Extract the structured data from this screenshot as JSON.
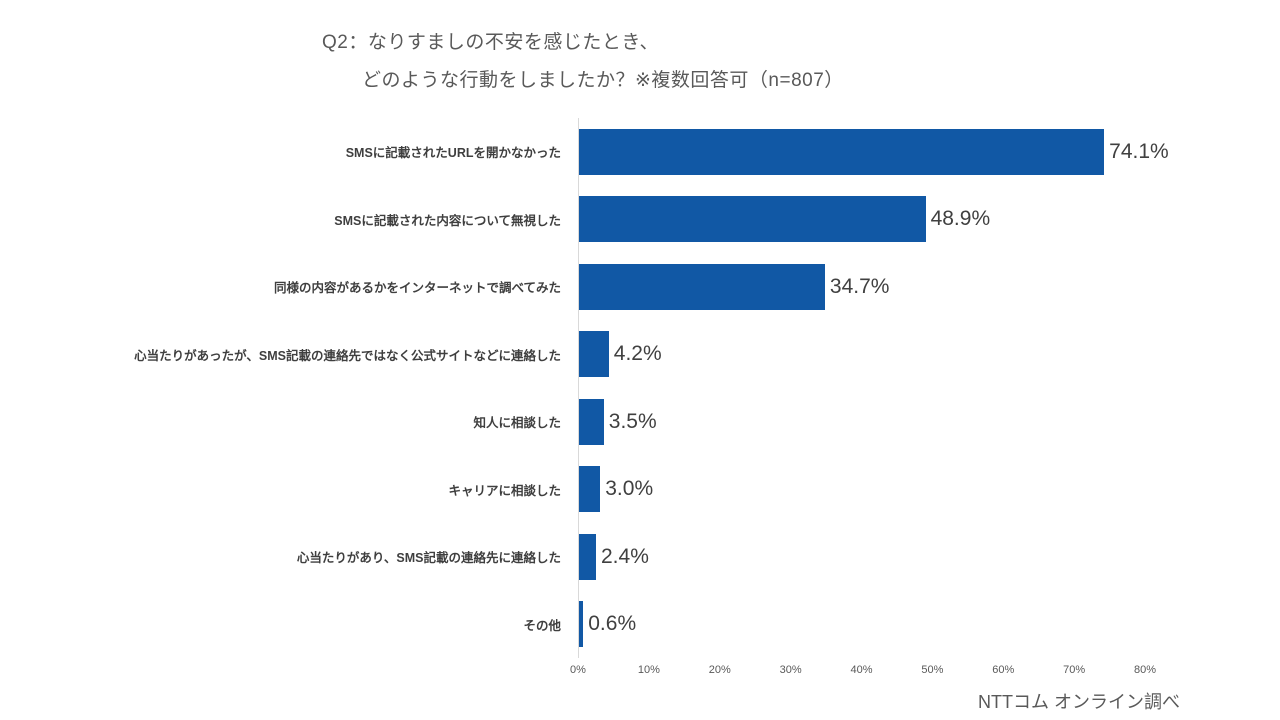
{
  "title": {
    "line1": "Q2：なりすましの不安を感じたとき、",
    "line2": "どのような行動をしましたか？※複数回答可（n=807）"
  },
  "footer": {
    "source": "NTTコム オンライン調べ"
  },
  "chart_data": {
    "type": "bar",
    "orientation": "horizontal",
    "title": "Q2：なりすましの不安を感じたとき、どのような行動をしましたか？※複数回答可（n=807）",
    "n": 807,
    "categories": [
      "SMSに記載されたURLを開かなかった",
      "SMSに記載された内容について無視した",
      "同様の内容があるかをインターネットで調べてみた",
      "心当たりがあったが、SMS記載の連絡先ではなく公式サイトなどに連絡した",
      "知人に相談した",
      "キャリアに相談した",
      "心当たりがあり、SMS記載の連絡先に連絡した",
      "その他"
    ],
    "values": [
      74.1,
      48.9,
      34.7,
      4.2,
      3.5,
      3.0,
      2.4,
      0.6
    ],
    "value_labels": [
      "74.1%",
      "48.9%",
      "34.7%",
      "4.2%",
      "3.5%",
      "3.0%",
      "2.4%",
      "0.6%"
    ],
    "x_ticks": [
      "0%",
      "10%",
      "20%",
      "30%",
      "40%",
      "50%",
      "60%",
      "70%",
      "80%"
    ],
    "x_tick_values": [
      0,
      10,
      20,
      30,
      40,
      50,
      60,
      70,
      80
    ],
    "xlim": [
      0,
      80
    ],
    "grid": false,
    "legend": false,
    "bar_color": "#1158A5",
    "axis_line_color": "#d9d9d9"
  }
}
